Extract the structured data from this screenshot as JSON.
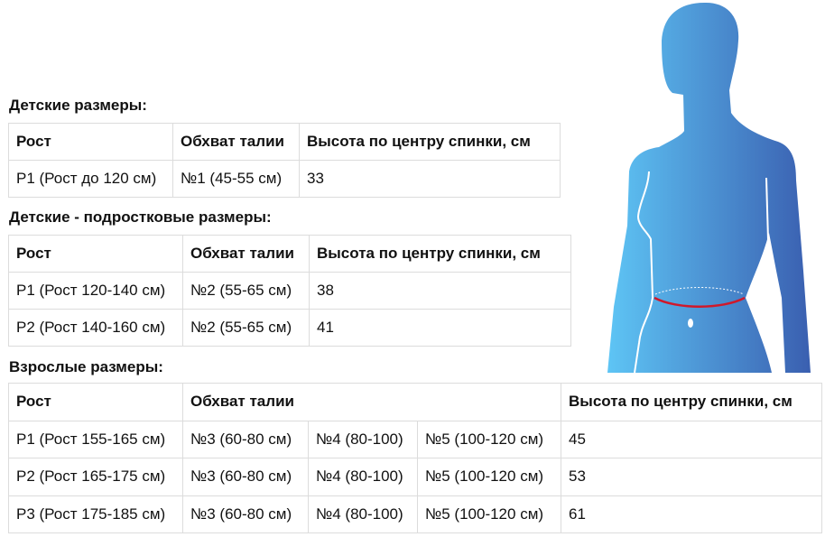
{
  "sections": [
    {
      "title": "Детские размеры:",
      "headers": [
        "Рост",
        "Обхват талии",
        "Высота по центру спинки, см"
      ],
      "rows": [
        [
          "Р1 (Рост до 120 см)",
          "№1 (45-55 см)",
          "33"
        ]
      ]
    },
    {
      "title": "Детские - подростковые размеры:",
      "headers": [
        "Рост",
        "Обхват талии",
        "Высота по центру спинки, см"
      ],
      "rows": [
        [
          "Р1 (Рост 120-140 см)",
          "№2 (55-65 см)",
          "38"
        ],
        [
          "Р2 (Рост 140-160 см)",
          "№2 (55-65 см)",
          "41"
        ]
      ]
    },
    {
      "title": "Взрослые размеры:",
      "headers": [
        "Рост",
        "Обхват талии",
        "Высота по центру спинки, см"
      ],
      "rows": [
        [
          "Р1 (Рост 155-165 см)",
          "№3 (60-80 см)",
          "№4 (80-100)",
          "№5 (100-120 см)",
          "45"
        ],
        [
          "Р2 (Рост 165-175 см)",
          "№3 (60-80 см)",
          "№4 (80-100)",
          "№5 (100-120 см)",
          "53"
        ],
        [
          "Р3 (Рост 175-185 см)",
          "№3 (60-80 см)",
          "№4 (80-100)",
          "№5 (100-120 см)",
          "61"
        ]
      ]
    }
  ],
  "figure": {
    "icon": "female-torso-waist-measurement-icon",
    "gradient_start": "#5ec5f5",
    "gradient_end": "#3a5fb0",
    "waist_line_color": "#d0182a"
  }
}
